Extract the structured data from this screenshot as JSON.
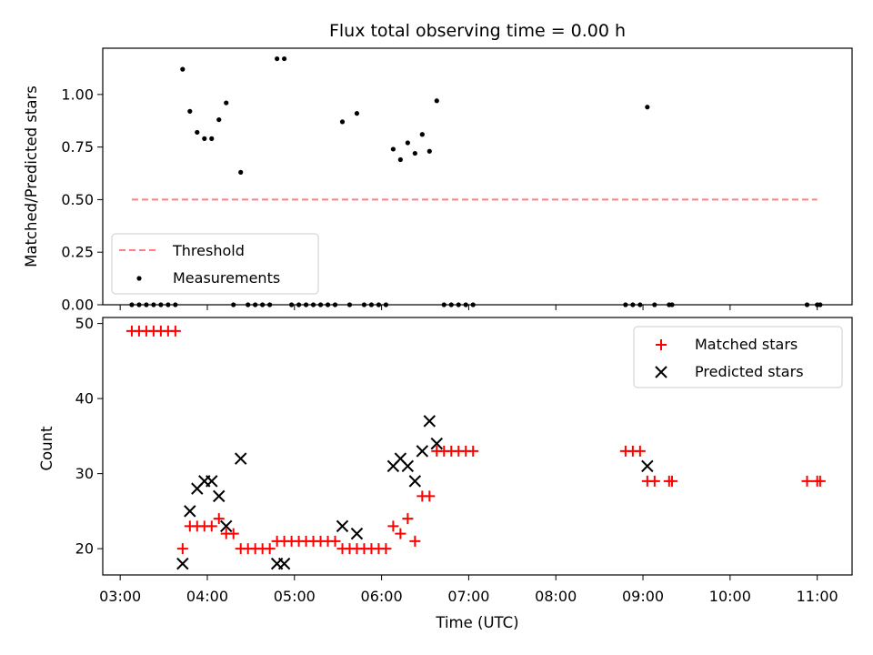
{
  "chart_data": [
    {
      "type": "scatter",
      "title": "Flux total observing time = 0.00 h",
      "xlabel": "",
      "ylabel": "Matched/Predicted stars",
      "ylim": [
        0,
        1.22
      ],
      "xlim": [
        "02:48",
        "11:24"
      ],
      "yticks": [
        "0.00",
        "0.25",
        "0.50",
        "0.75",
        "1.00"
      ],
      "legend_position": "lower-left",
      "threshold": {
        "name": "Threshold",
        "value": 0.5,
        "x_range": [
          "03:08",
          "11:00"
        ],
        "color": "#ff7f7f",
        "style": "dashed"
      },
      "series": [
        {
          "name": "Measurements",
          "color": "#000000",
          "marker": "dot",
          "points": [
            [
              "03:08",
              0
            ],
            [
              "03:13",
              0
            ],
            [
              "03:18",
              0
            ],
            [
              "03:23",
              0
            ],
            [
              "03:28",
              0
            ],
            [
              "03:33",
              0
            ],
            [
              "03:38",
              0
            ],
            [
              "03:43",
              1.12
            ],
            [
              "03:48",
              0.92
            ],
            [
              "03:53",
              0.82
            ],
            [
              "03:58",
              0.79
            ],
            [
              "04:03",
              0.79
            ],
            [
              "04:08",
              0.88
            ],
            [
              "04:13",
              0.96
            ],
            [
              "04:18",
              0
            ],
            [
              "04:23",
              0.63
            ],
            [
              "04:28",
              0
            ],
            [
              "04:33",
              0
            ],
            [
              "04:38",
              0
            ],
            [
              "04:43",
              0
            ],
            [
              "04:48",
              1.17
            ],
            [
              "04:53",
              1.17
            ],
            [
              "04:58",
              0
            ],
            [
              "05:03",
              0
            ],
            [
              "05:08",
              0
            ],
            [
              "05:13",
              0
            ],
            [
              "05:18",
              0
            ],
            [
              "05:23",
              0
            ],
            [
              "05:28",
              0
            ],
            [
              "05:33",
              0.87
            ],
            [
              "05:38",
              0
            ],
            [
              "05:43",
              0.91
            ],
            [
              "05:48",
              0
            ],
            [
              "05:53",
              0
            ],
            [
              "05:58",
              0
            ],
            [
              "06:03",
              0
            ],
            [
              "06:08",
              0.74
            ],
            [
              "06:13",
              0.69
            ],
            [
              "06:18",
              0.77
            ],
            [
              "06:23",
              0.72
            ],
            [
              "06:28",
              0.81
            ],
            [
              "06:33",
              0.73
            ],
            [
              "06:38",
              0.97
            ],
            [
              "06:43",
              0
            ],
            [
              "06:48",
              0
            ],
            [
              "06:53",
              0
            ],
            [
              "06:58",
              0
            ],
            [
              "07:03",
              0
            ],
            [
              "08:48",
              0
            ],
            [
              "08:53",
              0
            ],
            [
              "08:58",
              0
            ],
            [
              "09:03",
              0.94
            ],
            [
              "09:08",
              0
            ],
            [
              "09:18",
              0
            ],
            [
              "09:20",
              0
            ],
            [
              "10:53",
              0
            ],
            [
              "11:00",
              0
            ],
            [
              "11:02",
              0
            ]
          ]
        }
      ]
    },
    {
      "type": "scatter",
      "title": "",
      "xlabel": "Time (UTC)",
      "ylabel": "Count",
      "ylim": [
        16.5,
        50.8
      ],
      "xlim": [
        "02:48",
        "11:24"
      ],
      "yticks": [
        "20",
        "30",
        "40",
        "50"
      ],
      "xticks": [
        "03:00",
        "04:00",
        "05:00",
        "06:00",
        "07:00",
        "08:00",
        "09:00",
        "10:00",
        "11:00"
      ],
      "legend_position": "top-right",
      "series": [
        {
          "name": "Matched stars",
          "color": "#ff0000",
          "marker": "plus",
          "points": [
            [
              "03:08",
              49
            ],
            [
              "03:13",
              49
            ],
            [
              "03:18",
              49
            ],
            [
              "03:23",
              49
            ],
            [
              "03:28",
              49
            ],
            [
              "03:33",
              49
            ],
            [
              "03:38",
              49
            ],
            [
              "03:43",
              20
            ],
            [
              "03:48",
              23
            ],
            [
              "03:53",
              23
            ],
            [
              "03:58",
              23
            ],
            [
              "04:03",
              23
            ],
            [
              "04:08",
              24
            ],
            [
              "04:13",
              22
            ],
            [
              "04:18",
              22
            ],
            [
              "04:23",
              20
            ],
            [
              "04:28",
              20
            ],
            [
              "04:33",
              20
            ],
            [
              "04:38",
              20
            ],
            [
              "04:43",
              20
            ],
            [
              "04:48",
              21
            ],
            [
              "04:53",
              21
            ],
            [
              "04:58",
              21
            ],
            [
              "05:03",
              21
            ],
            [
              "05:08",
              21
            ],
            [
              "05:13",
              21
            ],
            [
              "05:18",
              21
            ],
            [
              "05:23",
              21
            ],
            [
              "05:28",
              21
            ],
            [
              "05:33",
              20
            ],
            [
              "05:38",
              20
            ],
            [
              "05:43",
              20
            ],
            [
              "05:48",
              20
            ],
            [
              "05:53",
              20
            ],
            [
              "05:58",
              20
            ],
            [
              "06:03",
              20
            ],
            [
              "06:08",
              23
            ],
            [
              "06:13",
              22
            ],
            [
              "06:18",
              24
            ],
            [
              "06:23",
              21
            ],
            [
              "06:28",
              27
            ],
            [
              "06:33",
              27
            ],
            [
              "06:38",
              33
            ],
            [
              "06:43",
              33
            ],
            [
              "06:48",
              33
            ],
            [
              "06:53",
              33
            ],
            [
              "06:58",
              33
            ],
            [
              "07:03",
              33
            ],
            [
              "08:48",
              33
            ],
            [
              "08:53",
              33
            ],
            [
              "08:58",
              33
            ],
            [
              "09:03",
              29
            ],
            [
              "09:08",
              29
            ],
            [
              "09:18",
              29
            ],
            [
              "09:20",
              29
            ],
            [
              "10:53",
              29
            ],
            [
              "11:00",
              29
            ],
            [
              "11:02",
              29
            ]
          ]
        },
        {
          "name": "Predicted stars",
          "color": "#000000",
          "marker": "x",
          "points": [
            [
              "03:43",
              18
            ],
            [
              "03:48",
              25
            ],
            [
              "03:53",
              28
            ],
            [
              "03:58",
              29
            ],
            [
              "04:03",
              29
            ],
            [
              "04:08",
              27
            ],
            [
              "04:13",
              23
            ],
            [
              "04:23",
              32
            ],
            [
              "04:48",
              18
            ],
            [
              "04:53",
              18
            ],
            [
              "05:33",
              23
            ],
            [
              "05:43",
              22
            ],
            [
              "06:08",
              31
            ],
            [
              "06:13",
              32
            ],
            [
              "06:18",
              31
            ],
            [
              "06:23",
              29
            ],
            [
              "06:28",
              33
            ],
            [
              "06:33",
              37
            ],
            [
              "06:38",
              34
            ],
            [
              "09:03",
              31
            ]
          ]
        }
      ]
    }
  ]
}
